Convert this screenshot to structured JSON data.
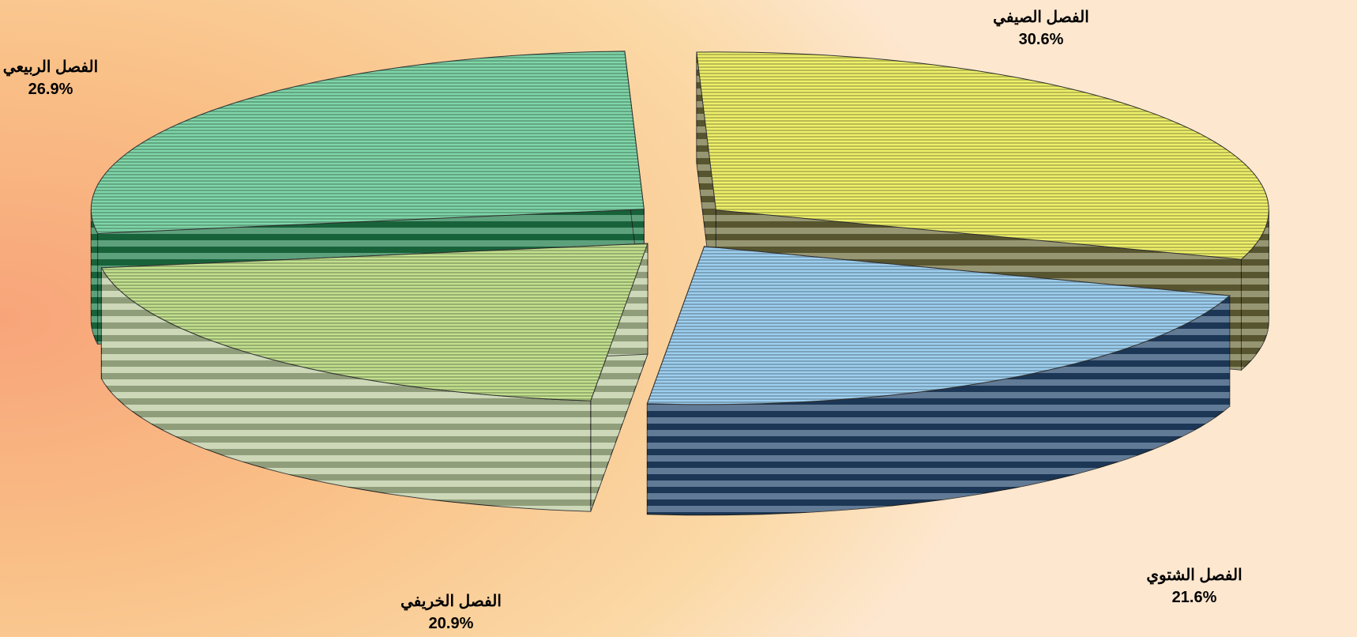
{
  "chart_data": {
    "type": "pie",
    "three_d": true,
    "exploded": true,
    "slices": [
      {
        "name": "الفصل الصيفي",
        "value": 30.6,
        "label": "30.6%",
        "color": "#eef06a",
        "side_color": "#6f6d3c"
      },
      {
        "name": "الفصل الشتوي",
        "value": 21.6,
        "label": "21.6%",
        "color": "#9ecff0",
        "side_color": "#24466d"
      },
      {
        "name": "الفصل الخريفي",
        "value": 20.9,
        "label": "20.9%",
        "color": "#c2e08e",
        "side_color": "#b9c99c"
      },
      {
        "name": "الفصل الربيعي",
        "value": 26.9,
        "label": "26.9%",
        "color": "#7fd6a8",
        "side_color": "#1f7d4a"
      }
    ]
  }
}
